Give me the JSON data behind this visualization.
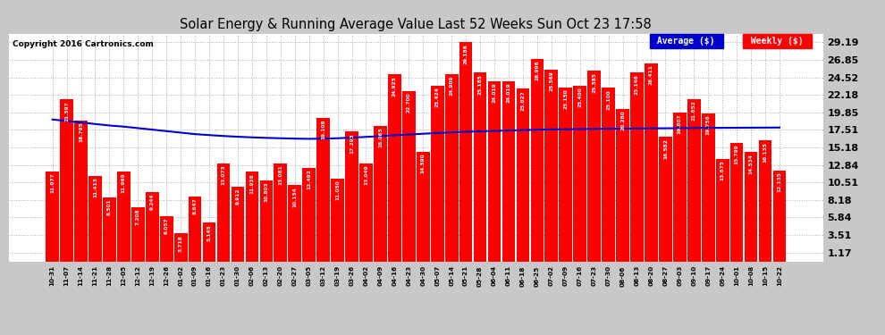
{
  "title": "Solar Energy & Running Average Value Last 52 Weeks Sun Oct 23 17:58",
  "copyright": "Copyright 2016 Cartronics.com",
  "bar_color": "#ff0000",
  "avg_line_color": "#0000cc",
  "fig_bg_color": "#c8c8c8",
  "plot_bg_color": "#ffffff",
  "yticks": [
    1.17,
    3.51,
    5.84,
    8.18,
    10.51,
    12.84,
    15.18,
    17.51,
    19.85,
    22.18,
    24.52,
    26.85,
    29.19
  ],
  "categories": [
    "10-31",
    "11-07",
    "11-14",
    "11-21",
    "11-28",
    "12-05",
    "12-12",
    "12-19",
    "12-26",
    "01-02",
    "01-09",
    "01-16",
    "01-23",
    "01-30",
    "02-06",
    "02-13",
    "02-20",
    "02-27",
    "03-05",
    "03-12",
    "03-19",
    "03-26",
    "04-02",
    "04-09",
    "04-16",
    "04-23",
    "04-30",
    "05-07",
    "05-14",
    "05-21",
    "05-28",
    "06-04",
    "06-11",
    "06-18",
    "06-25",
    "07-02",
    "07-09",
    "07-16",
    "07-23",
    "07-30",
    "08-06",
    "08-13",
    "08-20",
    "08-27",
    "09-03",
    "09-10",
    "09-17",
    "09-24",
    "10-01",
    "10-08",
    "10-15",
    "10-22"
  ],
  "values": [
    11.977,
    21.597,
    18.795,
    11.413,
    8.501,
    11.969,
    7.208,
    9.244,
    6.057,
    3.718,
    8.647,
    5.145,
    13.073,
    9.912,
    11.938,
    10.803,
    13.081,
    10.154,
    12.492,
    19.108,
    11.05,
    17.293,
    13.049,
    18.065,
    24.925,
    22.7,
    14.59,
    23.424,
    24.909,
    29.186,
    25.185,
    24.019,
    24.019,
    23.027,
    26.996,
    25.569,
    23.15,
    23.4,
    25.385,
    23.1,
    20.28,
    25.146,
    26.411,
    16.582,
    19.807,
    21.652,
    19.756,
    13.675,
    15.799,
    14.534,
    16.135,
    12.135
  ],
  "avg_values": [
    18.9,
    18.7,
    18.5,
    18.3,
    18.1,
    17.95,
    17.75,
    17.55,
    17.35,
    17.15,
    16.95,
    16.82,
    16.7,
    16.6,
    16.52,
    16.45,
    16.4,
    16.35,
    16.32,
    16.35,
    16.4,
    16.48,
    16.58,
    16.68,
    16.8,
    16.9,
    17.0,
    17.1,
    17.18,
    17.26,
    17.32,
    17.38,
    17.44,
    17.48,
    17.54,
    17.58,
    17.6,
    17.62,
    17.65,
    17.67,
    17.68,
    17.7,
    17.72,
    17.73,
    17.75,
    17.76,
    17.78,
    17.79,
    17.8,
    17.81,
    17.82,
    17.83
  ],
  "ylim": [
    0,
    30.36
  ],
  "figsize": [
    9.9,
    3.75
  ],
  "dpi": 100
}
